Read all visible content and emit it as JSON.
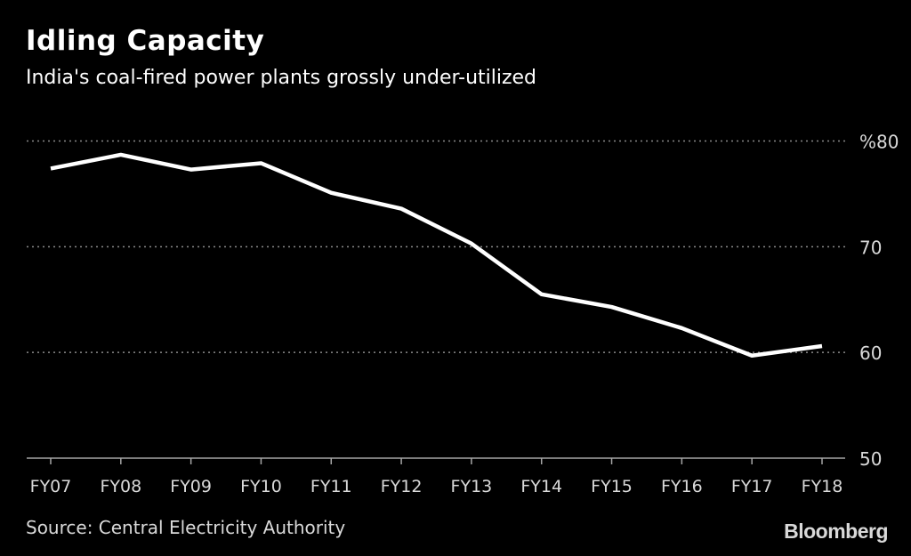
{
  "chart_data": {
    "type": "line",
    "title": "Idling Capacity",
    "subtitle": "India's coal-fired power plants grossly under-utilized",
    "categories": [
      "FY07",
      "FY08",
      "FY09",
      "FY10",
      "FY11",
      "FY12",
      "FY13",
      "FY14",
      "FY15",
      "FY16",
      "FY17",
      "FY18"
    ],
    "series": [
      {
        "values": [
          77.4,
          78.7,
          77.3,
          77.9,
          75.1,
          73.6,
          70.3,
          65.5,
          64.3,
          62.3,
          59.7,
          60.6
        ],
        "color": "#ffffff"
      }
    ],
    "ylim": [
      50,
      80
    ],
    "yticks": [
      {
        "value": 80,
        "label": "%80"
      },
      {
        "value": 70,
        "label": "70"
      },
      {
        "value": 60,
        "label": "60"
      },
      {
        "value": 50,
        "label": "50"
      }
    ],
    "grid": true,
    "y_axis_side": "right",
    "source": "Source: Central Electricity Authority",
    "logo": "Bloomberg"
  }
}
